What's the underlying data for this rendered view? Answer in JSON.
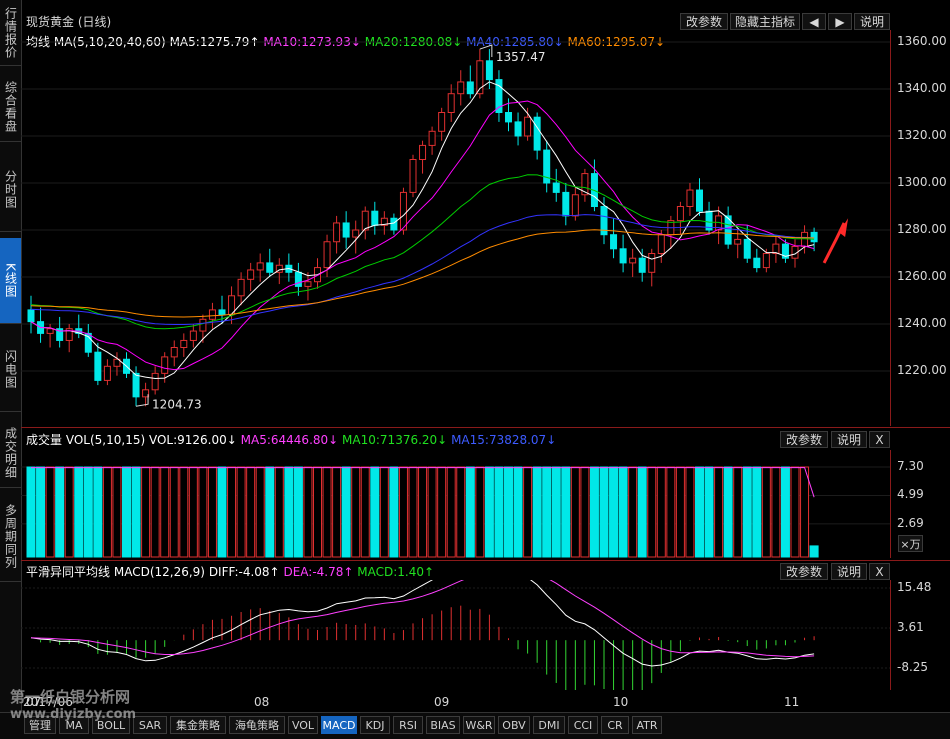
{
  "sidebar": {
    "tabs": [
      {
        "label": "行情报价",
        "active": false
      },
      {
        "label": "综合看盘",
        "active": false
      },
      {
        "label": "分时图",
        "active": false
      },
      {
        "label": "K线图",
        "active": true
      },
      {
        "label": "闪电图",
        "active": false
      },
      {
        "label": "成交明细",
        "active": false
      },
      {
        "label": "多周期同列",
        "active": false
      }
    ]
  },
  "main": {
    "title": "现货黄金 (日线)",
    "buttons": {
      "params": "改参数",
      "hide": "隐藏主指标",
      "left": "◀",
      "right": "▶",
      "help": "说明"
    },
    "legend": {
      "label": "均线",
      "ma_params": "MA(5,10,20,40,60)",
      "ma5": "MA5:1275.79↑",
      "ma10": "MA10:1273.93↓",
      "ma20": "MA20:1280.08↓",
      "ma40": "MA40:1285.80↓",
      "ma60": "MA60:1295.07↓"
    },
    "high_label": "1357.47",
    "low_label": "1204.73",
    "y_ticks": [
      "1360.00",
      "1340.00",
      "1320.00",
      "1300.00",
      "1280.00",
      "1260.00",
      "1240.00",
      "1220.00"
    ]
  },
  "volume": {
    "legend": {
      "label": "成交量",
      "params": "VOL(5,10,15)",
      "vol": "VOL:9126.00↓",
      "ma5": "MA5:64446.80↓",
      "ma10": "MA10:71376.20↓",
      "ma15": "MA15:73828.07↓"
    },
    "buttons": {
      "params": "改参数",
      "help": "说明",
      "close": "X"
    },
    "y_ticks": [
      "7.30",
      "4.99",
      "2.69"
    ],
    "unit": "×万"
  },
  "macd": {
    "legend": {
      "label": "平滑异同平均线",
      "params": "MACD(12,26,9)",
      "diff": "DIFF:-4.08↑",
      "dea": "DEA:-4.78↑",
      "macd": "MACD:1.40↑"
    },
    "buttons": {
      "params": "改参数",
      "help": "说明",
      "close": "X"
    },
    "y_ticks": [
      "15.48",
      "3.61",
      "-8.25"
    ]
  },
  "xaxis": {
    "labels": [
      "2017/06",
      "07",
      "08",
      "09",
      "10",
      "11"
    ]
  },
  "bottom_tabs": [
    "管理",
    "MA",
    "BOLL",
    "SAR",
    "集金策略",
    "海龟策略",
    "VOL",
    "MACD",
    "KDJ",
    "RSI",
    "BIAS",
    "W&R",
    "OBV",
    "DMI",
    "CCI",
    "CR",
    "ATR"
  ],
  "active_bottom_tab": "MACD",
  "watermark": {
    "line1": "第一纸白银分析网",
    "line2": "www.diyizby.com"
  },
  "colors": {
    "up": "#e03030",
    "down": "#00e8e8",
    "ma5": "#ffffff",
    "ma10": "#ff00ff",
    "ma20": "#00cc00",
    "ma40": "#3333ff",
    "ma60": "#ff8c00",
    "accent": "#1565c0"
  },
  "chart_data": {
    "type": "candlestick",
    "title": "现货黄金 (日线)",
    "ylim": [
      1200,
      1365
    ],
    "candles": [
      [
        1246,
        1252,
        1236,
        1241
      ],
      [
        1241,
        1247,
        1232,
        1236
      ],
      [
        1236,
        1240,
        1230,
        1238
      ],
      [
        1238,
        1243,
        1230,
        1233
      ],
      [
        1233,
        1240,
        1228,
        1238
      ],
      [
        1238,
        1244,
        1234,
        1236
      ],
      [
        1236,
        1240,
        1226,
        1228
      ],
      [
        1228,
        1232,
        1214,
        1216
      ],
      [
        1216,
        1225,
        1214,
        1222
      ],
      [
        1222,
        1228,
        1218,
        1225
      ],
      [
        1225,
        1228,
        1217,
        1219
      ],
      [
        1219,
        1222,
        1205,
        1209
      ],
      [
        1209,
        1215,
        1205,
        1212
      ],
      [
        1212,
        1222,
        1210,
        1219
      ],
      [
        1219,
        1228,
        1215,
        1226
      ],
      [
        1226,
        1233,
        1222,
        1230
      ],
      [
        1230,
        1236,
        1226,
        1233
      ],
      [
        1233,
        1240,
        1230,
        1237
      ],
      [
        1237,
        1244,
        1232,
        1242
      ],
      [
        1242,
        1249,
        1238,
        1246
      ],
      [
        1246,
        1252,
        1240,
        1244
      ],
      [
        1244,
        1256,
        1240,
        1252
      ],
      [
        1252,
        1262,
        1248,
        1259
      ],
      [
        1259,
        1266,
        1254,
        1263
      ],
      [
        1263,
        1270,
        1258,
        1266
      ],
      [
        1266,
        1272,
        1260,
        1262
      ],
      [
        1262,
        1268,
        1257,
        1265
      ],
      [
        1265,
        1270,
        1258,
        1262
      ],
      [
        1262,
        1266,
        1252,
        1256
      ],
      [
        1256,
        1262,
        1250,
        1258
      ],
      [
        1258,
        1268,
        1255,
        1264
      ],
      [
        1264,
        1278,
        1260,
        1275
      ],
      [
        1275,
        1286,
        1270,
        1283
      ],
      [
        1283,
        1288,
        1272,
        1277
      ],
      [
        1277,
        1284,
        1270,
        1280
      ],
      [
        1280,
        1290,
        1276,
        1288
      ],
      [
        1288,
        1292,
        1278,
        1282
      ],
      [
        1282,
        1288,
        1278,
        1285
      ],
      [
        1285,
        1287,
        1278,
        1280
      ],
      [
        1280,
        1298,
        1278,
        1296
      ],
      [
        1296,
        1312,
        1294,
        1310
      ],
      [
        1310,
        1318,
        1304,
        1316
      ],
      [
        1316,
        1324,
        1312,
        1322
      ],
      [
        1322,
        1332,
        1318,
        1330
      ],
      [
        1330,
        1342,
        1326,
        1338
      ],
      [
        1338,
        1348,
        1333,
        1343
      ],
      [
        1343,
        1350,
        1336,
        1338
      ],
      [
        1338,
        1357,
        1336,
        1352
      ],
      [
        1352,
        1357,
        1340,
        1344
      ],
      [
        1344,
        1348,
        1326,
        1330
      ],
      [
        1330,
        1336,
        1322,
        1326
      ],
      [
        1326,
        1330,
        1316,
        1320
      ],
      [
        1320,
        1332,
        1318,
        1328
      ],
      [
        1328,
        1330,
        1310,
        1314
      ],
      [
        1314,
        1318,
        1296,
        1300
      ],
      [
        1300,
        1306,
        1292,
        1296
      ],
      [
        1296,
        1300,
        1282,
        1286
      ],
      [
        1286,
        1298,
        1284,
        1295
      ],
      [
        1295,
        1306,
        1292,
        1304
      ],
      [
        1304,
        1310,
        1288,
        1290
      ],
      [
        1290,
        1294,
        1274,
        1278
      ],
      [
        1278,
        1285,
        1268,
        1272
      ],
      [
        1272,
        1278,
        1262,
        1266
      ],
      [
        1266,
        1272,
        1260,
        1268
      ],
      [
        1268,
        1272,
        1258,
        1262
      ],
      [
        1262,
        1272,
        1256,
        1270
      ],
      [
        1270,
        1280,
        1266,
        1278
      ],
      [
        1278,
        1286,
        1272,
        1284
      ],
      [
        1284,
        1292,
        1278,
        1290
      ],
      [
        1290,
        1300,
        1286,
        1297
      ],
      [
        1297,
        1302,
        1286,
        1288
      ],
      [
        1288,
        1292,
        1278,
        1280
      ],
      [
        1280,
        1290,
        1274,
        1286
      ],
      [
        1286,
        1290,
        1272,
        1274
      ],
      [
        1274,
        1280,
        1268,
        1276
      ],
      [
        1276,
        1282,
        1266,
        1268
      ],
      [
        1268,
        1272,
        1262,
        1264
      ],
      [
        1264,
        1272,
        1262,
        1270
      ],
      [
        1270,
        1278,
        1266,
        1274
      ],
      [
        1274,
        1276,
        1266,
        1268
      ],
      [
        1268,
        1276,
        1264,
        1273
      ],
      [
        1273,
        1282,
        1270,
        1279
      ],
      [
        1279,
        1281,
        1271,
        1275
      ]
    ],
    "ma_last": {
      "ma5": 1275.79,
      "ma10": 1273.93,
      "ma20": 1280.08,
      "ma40": 1285.8,
      "ma60": 1295.07
    }
  }
}
